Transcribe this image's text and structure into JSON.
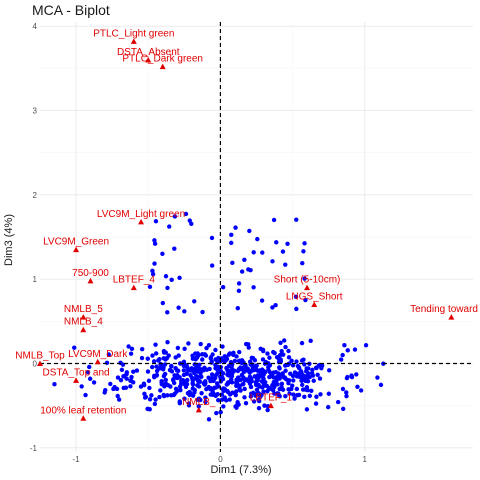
{
  "chart_data": {
    "type": "scatter",
    "title": "MCA - Biplot",
    "xlabel": "Dim1 (7.3%)",
    "ylabel": "Dim3 (4%)",
    "xlim": [
      -1.25,
      1.75
    ],
    "ylim": [
      -1.05,
      4.05
    ],
    "x_ticks": [
      -1,
      0,
      1
    ],
    "y_ticks": [
      -1,
      0,
      1,
      2,
      3,
      4
    ],
    "grid": true,
    "reference_lines": {
      "x": 0,
      "y": 0,
      "style": "dashed"
    },
    "colors": {
      "individuals": "#0000ff",
      "variables": "#e00000",
      "grid_major": "#ebebeb",
      "grid_minor": "#f5f5f5"
    },
    "variables": [
      {
        "label": "PTLC_Light green",
        "x": -0.6,
        "y": 3.82
      },
      {
        "label": "DSTA_Absent",
        "x": -0.5,
        "y": 3.6
      },
      {
        "label": "PTLC_Dark green",
        "x": -0.4,
        "y": 3.52
      },
      {
        "label": "LVC9M_Light green",
        "x": -0.55,
        "y": 1.68
      },
      {
        "label": "LVC9M_Green",
        "x": -1.0,
        "y": 1.35
      },
      {
        "label": "750-900",
        "x": -0.9,
        "y": 0.98
      },
      {
        "label": "LBTEF_4",
        "x": -0.6,
        "y": 0.9
      },
      {
        "label": "Short (5-10cm)",
        "x": 0.6,
        "y": 0.9
      },
      {
        "label": "LNGS_Short",
        "x": 0.65,
        "y": 0.7
      },
      {
        "label": "Tending toward",
        "x": 1.6,
        "y": 0.55
      },
      {
        "label": "NMLB_5",
        "x": -0.95,
        "y": 0.55
      },
      {
        "label": "NMLB_4",
        "x": -0.95,
        "y": 0.4
      },
      {
        "label": "LVC9M_Dark",
        "x": -0.85,
        "y": 0.02
      },
      {
        "label": "DSTA_Top and",
        "x": -1.0,
        "y": -0.2
      },
      {
        "label": "100% leaf retention",
        "x": -0.95,
        "y": -0.65
      },
      {
        "label": "NMLB_",
        "x": -0.15,
        "y": -0.55
      },
      {
        "label": "LBTEF_1",
        "x": 0.35,
        "y": -0.5
      },
      {
        "label": "NMLB_Top",
        "x": -1.25,
        "y": 0.0
      }
    ],
    "individual_points_note": "approximately 700 individual points, bulk between x -1.1 and 1.2, y -0.7 and 0.3, with a secondary group around x -0.5 to 0.6, y 0.6 to 1.8"
  }
}
